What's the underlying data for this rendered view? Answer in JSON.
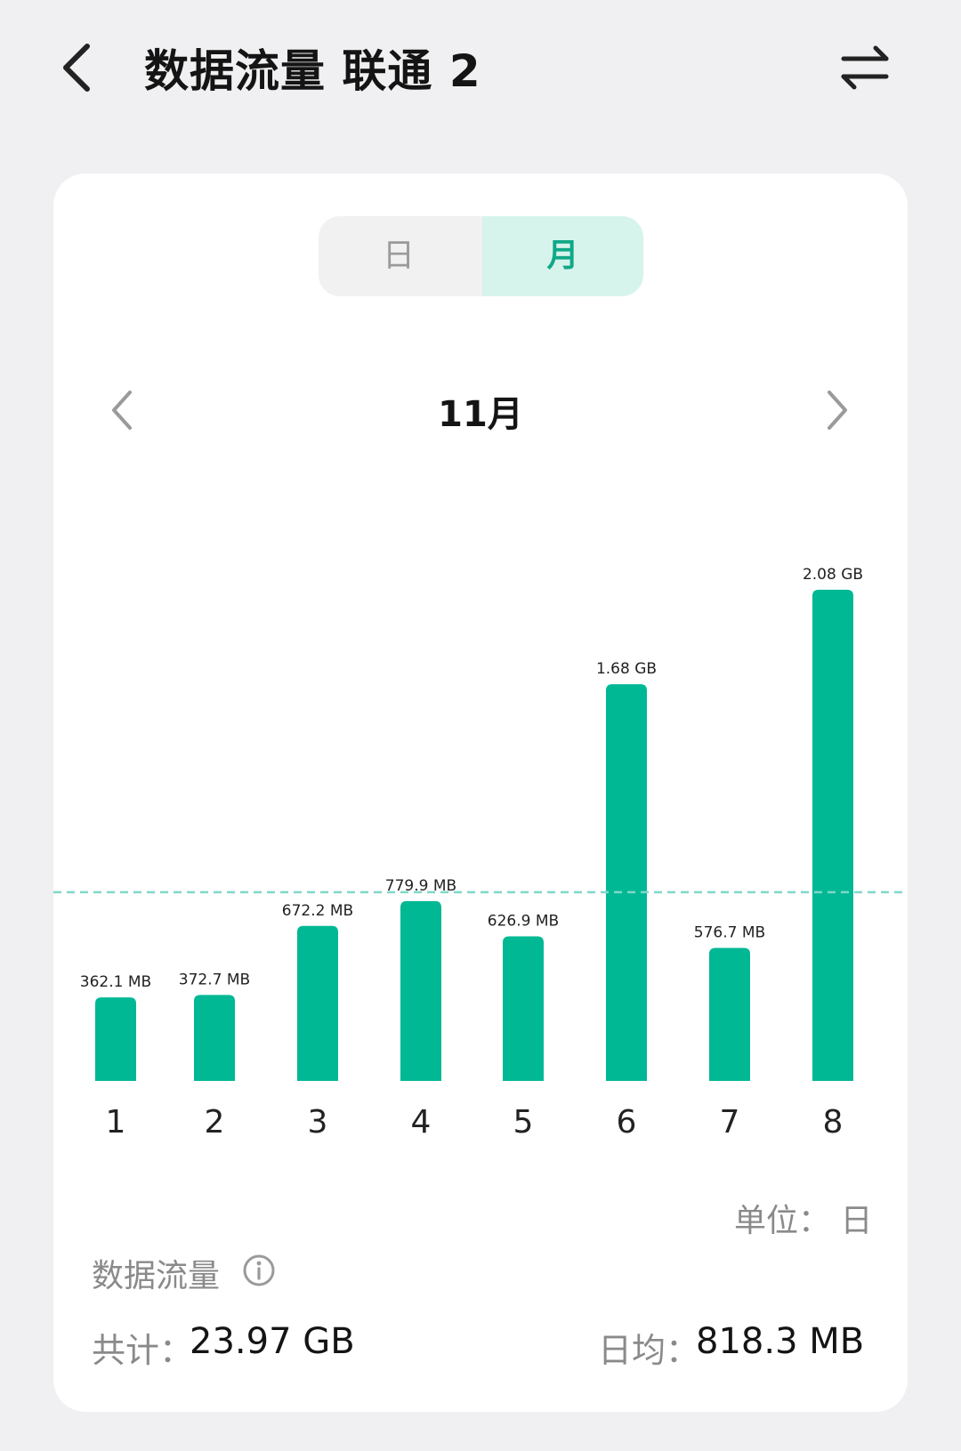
{
  "header": {
    "title": "数据流量 联通 2",
    "back_icon": "chevron-left-icon",
    "swap_icon": "swap-arrows-icon"
  },
  "segmented": {
    "day_label": "日",
    "month_label": "月",
    "selected": "月",
    "accent": "#10a888",
    "accent_bg": "#d6f3ec"
  },
  "period": {
    "label": "11月",
    "prev_icon": "chevron-left-icon",
    "next_icon": "chevron-right-icon"
  },
  "chart_data": {
    "type": "bar",
    "categories": [
      "1",
      "2",
      "3",
      "4",
      "5",
      "6",
      "7",
      "8"
    ],
    "values_mb": [
      362.1,
      372.7,
      672.2,
      779.9,
      626.9,
      1720.3,
      576.7,
      2129.9
    ],
    "value_labels": [
      "362.1 MB",
      "372.7 MB",
      "672.2 MB",
      "779.9 MB",
      "626.9 MB",
      "1.68 GB",
      "576.7 MB",
      "2.08 GB"
    ],
    "average_line_mb": 818.3,
    "bar_color": "#00b894",
    "average_line_color": "#7fd8c9"
  },
  "unit_label": "单位： 日",
  "summary": {
    "title": "数据流量",
    "info_icon": "info-circle-icon",
    "total_label": "共计：",
    "total_value": "23.97 GB",
    "avg_label": "日均：",
    "avg_value": "818.3 MB"
  }
}
